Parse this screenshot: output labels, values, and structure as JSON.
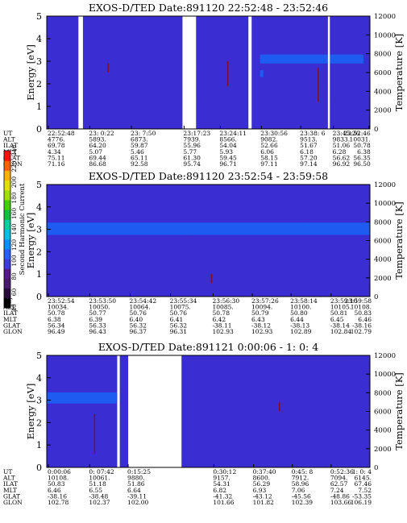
{
  "chart_data": [
    {
      "type": "heatmap",
      "title": "EXOS-D/TED    Date:891120   22:52:48 - 23:52:46",
      "ylabel_left": "Energy [eV]",
      "ylabel_right": "Temperature [K]",
      "ylim_left": [
        0,
        5
      ],
      "yticks_left": [
        "0",
        "1",
        "2",
        "3",
        "4",
        "5"
      ],
      "ylim_right": [
        0,
        12000
      ],
      "yticks_right": [
        "0",
        "2000",
        "4000",
        "6000",
        "8000",
        "10000",
        "12000"
      ],
      "background_color": "#3a2dd2",
      "band_color": "#1e5bf0",
      "gap_color": "#ffffff",
      "gaps": [
        [
          0.098,
          0.112
        ],
        [
          0.42,
          0.462
        ],
        [
          0.624,
          0.634
        ],
        [
          0.87,
          0.876
        ]
      ],
      "bands": [
        {
          "x": [
            0.66,
            0.98
          ],
          "y": [
            2.9,
            3.3
          ]
        },
        {
          "x": [
            0.66,
            0.67
          ],
          "y": [
            2.3,
            2.6
          ]
        }
      ],
      "markers": [
        {
          "x": 0.56,
          "y": [
            1.9,
            3.0
          ]
        },
        {
          "x": 0.84,
          "y": [
            1.2,
            2.7
          ]
        },
        {
          "x": 0.19,
          "y": [
            2.5,
            2.9
          ]
        }
      ],
      "table_labels": [
        "UT",
        "ALT",
        "ILAT",
        "MLT",
        "GLAT",
        "GLON"
      ],
      "ephemeris_columns": [
        {
          "x": 0.005,
          "values": [
            "22:52:48",
            "4776.",
            "69.78",
            "4.34",
            "75.11",
            "71.16"
          ]
        },
        {
          "x": 0.133,
          "values": [
            "23: 0:22",
            "5893.",
            "64.20",
            "5.07",
            "69.44",
            "86.68"
          ]
        },
        {
          "x": 0.262,
          "values": [
            "23: 7:50",
            "6873.",
            "59.87",
            "5.46",
            "65.11",
            "92.58"
          ]
        },
        {
          "x": 0.425,
          "values": [
            "23:17:23",
            "7939.",
            "55.96",
            "5.77",
            "61.30",
            "95.74"
          ]
        },
        {
          "x": 0.537,
          "values": [
            "23:24:11",
            "8566.",
            "54.04",
            "5.93",
            "59.45",
            "96.71"
          ]
        },
        {
          "x": 0.664,
          "values": [
            "23:30:56",
            "9082.",
            "52.66",
            "6.06",
            "58.15",
            "97.11"
          ]
        },
        {
          "x": 0.786,
          "values": [
            "23:38: 6",
            "9513.",
            "51.67",
            "6.18",
            "57.20",
            "97.14"
          ]
        },
        {
          "x": 0.887,
          "values": [
            "23:45:26",
            "9833.",
            "51.06",
            "6.28",
            "56.62",
            "96.92"
          ]
        },
        {
          "x": 0.997,
          "values": [
            "23:52:46",
            "10031.",
            "50.78",
            "6.38",
            "56.35",
            "96.50"
          ]
        }
      ]
    },
    {
      "type": "heatmap",
      "title": "EXOS-D/TED    Date:891120   23:52:54 - 23:59:58",
      "ylabel_left": "Energy [eV]",
      "ylabel_right": "Temperature [K]",
      "ylim_left": [
        0,
        5
      ],
      "yticks_left": [
        "0",
        "1",
        "2",
        "3",
        "4",
        "5"
      ],
      "ylim_right": [
        0,
        12000
      ],
      "yticks_right": [
        "0",
        "2000",
        "4000",
        "6000",
        "8000",
        "10000",
        "12000"
      ],
      "background_color": "#3a2dd2",
      "band_color": "#1e5bf0",
      "gap_color": "#ffffff",
      "gaps": [],
      "bands": [
        {
          "x": [
            0.0,
            1.0
          ],
          "y": [
            2.75,
            3.3
          ]
        }
      ],
      "markers": [
        {
          "x": 0.51,
          "y": [
            0.6,
            1.0
          ]
        }
      ],
      "table_labels": [
        "UT",
        "ALT",
        "ILAT",
        "MLT",
        "GLAT",
        "GLON"
      ],
      "ephemeris_columns": [
        {
          "x": 0.005,
          "values": [
            "23:52:54",
            "10034.",
            "50.78",
            "6.38",
            "56.34",
            "96.49"
          ]
        },
        {
          "x": 0.133,
          "values": [
            "23:53:50",
            "10050.",
            "50.77",
            "6.39",
            "56.33",
            "96.43"
          ]
        },
        {
          "x": 0.258,
          "values": [
            "23:54:42",
            "10064.",
            "50.76",
            "6.40",
            "56.32",
            "96.37"
          ]
        },
        {
          "x": 0.383,
          "values": [
            "23:55:34",
            "10075.",
            "50.76",
            "6.41",
            "56.32",
            "96.31"
          ]
        },
        {
          "x": 0.515,
          "values": [
            "23:56:30",
            "10085.",
            "50.78",
            "6.42",
            "-38.11",
            "102.93"
          ]
        },
        {
          "x": 0.636,
          "values": [
            "23:57:26",
            "10094.",
            "50.79",
            "6.43",
            "-38.12",
            "102.93"
          ]
        },
        {
          "x": 0.756,
          "values": [
            "23:58:14",
            "10100.",
            "50.80",
            "6.44",
            "-38.13",
            "102.89"
          ]
        },
        {
          "x": 0.88,
          "values": [
            "23:59:10",
            "10105.",
            "50.81",
            "6.45",
            "-38.14",
            "102.84"
          ]
        },
        {
          "x": 1.0,
          "values": [
            "23:59:58",
            "10108.",
            "50.83",
            "6.46",
            "-38.16",
            "102.79"
          ]
        }
      ]
    },
    {
      "type": "heatmap",
      "title": "EXOS-D/TED    Date:891121   0:00:06 - 1: 0: 4",
      "ylabel_left": "Energy [eV]",
      "ylabel_right": "Temperature [K]",
      "ylim_left": [
        0,
        5
      ],
      "yticks_left": [
        "0",
        "1",
        "2",
        "3",
        "4",
        "5"
      ],
      "ylim_right": [
        0,
        12000
      ],
      "yticks_right": [
        "0",
        "2000",
        "4000",
        "6000",
        "8000",
        "10000",
        "12000"
      ],
      "background_color": "#3a2dd2",
      "band_color": "#1e5bf0",
      "gap_color": "#ffffff",
      "gaps": [
        [
          0.218,
          0.226
        ],
        [
          0.252,
          0.417
        ]
      ],
      "bands": [
        {
          "x": [
            0.0,
            0.216
          ],
          "y": [
            2.85,
            3.35
          ]
        }
      ],
      "markers": [
        {
          "x": 0.148,
          "y": [
            0.6,
            2.4
          ]
        },
        {
          "x": 0.72,
          "y": [
            2.5,
            2.9
          ]
        }
      ],
      "table_labels": [
        "UT",
        "ALT",
        "ILAT",
        "MLT",
        "GLAT",
        "GLON"
      ],
      "ephemeris_columns": [
        {
          "x": 0.005,
          "values": [
            "0:00:06",
            "10108.",
            "50.83",
            "6.46",
            "-38.16",
            "102.78"
          ]
        },
        {
          "x": 0.133,
          "values": [
            "0: 07:42",
            "10061.",
            "51.18",
            "6.55",
            "-38.48",
            "102.37"
          ]
        },
        {
          "x": 0.252,
          "values": [
            "0:15:25",
            "9880.",
            "51.86",
            "6.64",
            "-39.11",
            "102.00"
          ]
        },
        {
          "x": 0.517,
          "values": [
            "0:30:12",
            "9157.",
            "54.31",
            "6.82",
            "-41.32",
            "101.66"
          ]
        },
        {
          "x": 0.64,
          "values": [
            "0:37:40",
            "8600.",
            "56.29",
            "6.93",
            "-43.12",
            "101.82"
          ]
        },
        {
          "x": 0.76,
          "values": [
            "0:45: 8",
            "7912.",
            "58.96",
            "7.06",
            "-45.56",
            "102.39"
          ]
        },
        {
          "x": 0.88,
          "values": [
            "0:52:36",
            "7094.",
            "62.57",
            "7.24",
            "-48.86",
            "103.66"
          ]
        },
        {
          "x": 1.0,
          "values": [
            "1: 0: 4",
            "6145.",
            "67.46",
            "7.52",
            "-53.35",
            "106.19"
          ]
        }
      ]
    }
  ],
  "colorbar": {
    "label": "Second Harmonic Current",
    "ticks": [
      "40",
      "60",
      "80",
      "100",
      "120",
      "140",
      "160",
      "180",
      "200",
      "220",
      "240"
    ],
    "colors": [
      "#000000",
      "#2a0a3a",
      "#4a1a6a",
      "#551a88",
      "#3b3be0",
      "#2a5cff",
      "#0090ff",
      "#00c0e0",
      "#00d0a0",
      "#10c040",
      "#40d000",
      "#a0e000",
      "#e0e000",
      "#ffb000",
      "#ff6000",
      "#ff1010"
    ]
  }
}
